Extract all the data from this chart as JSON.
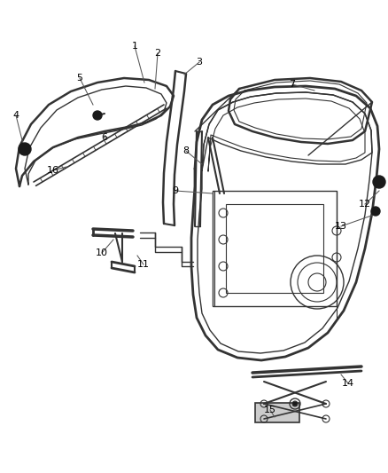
{
  "bg_color": "#ffffff",
  "line_color": "#333333",
  "label_color": "#000000",
  "figsize": [
    4.38,
    5.33
  ],
  "dpi": 100
}
